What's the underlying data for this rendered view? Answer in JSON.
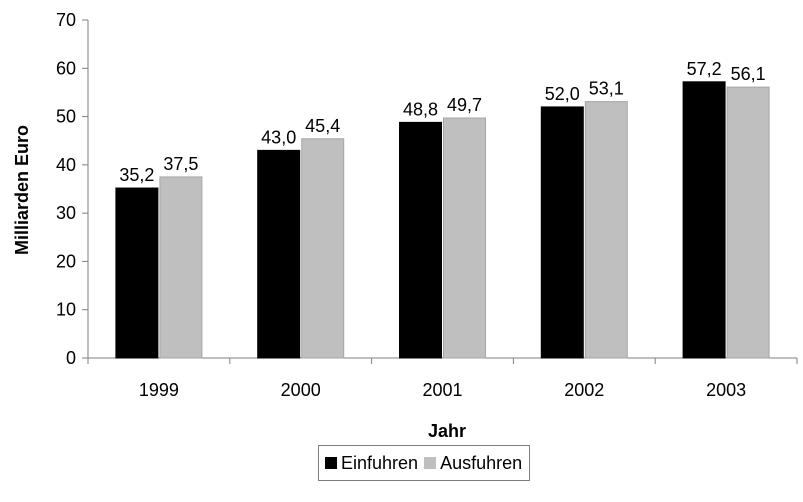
{
  "chart_data": {
    "type": "bar",
    "categories": [
      "1999",
      "2000",
      "2001",
      "2002",
      "2003"
    ],
    "series": [
      {
        "name": "Einfuhren",
        "values": [
          35.2,
          43.0,
          48.8,
          52.0,
          57.2
        ],
        "labels": [
          "35,2",
          "43,0",
          "48,8",
          "52,0",
          "57,2"
        ],
        "color": "#000000"
      },
      {
        "name": "Ausfuhren",
        "values": [
          37.5,
          45.4,
          49.7,
          53.1,
          56.1
        ],
        "labels": [
          "37,5",
          "45,4",
          "49,7",
          "53,1",
          "56,1"
        ],
        "color": "#bfbfbf"
      }
    ],
    "xlabel": "Jahr",
    "ylabel": "Milliarden Euro",
    "ylim": [
      0,
      70
    ],
    "yticks": [
      0,
      10,
      20,
      30,
      40,
      50,
      60,
      70
    ],
    "grid": false,
    "legend_position": "bottom-center",
    "data_labels": true
  }
}
